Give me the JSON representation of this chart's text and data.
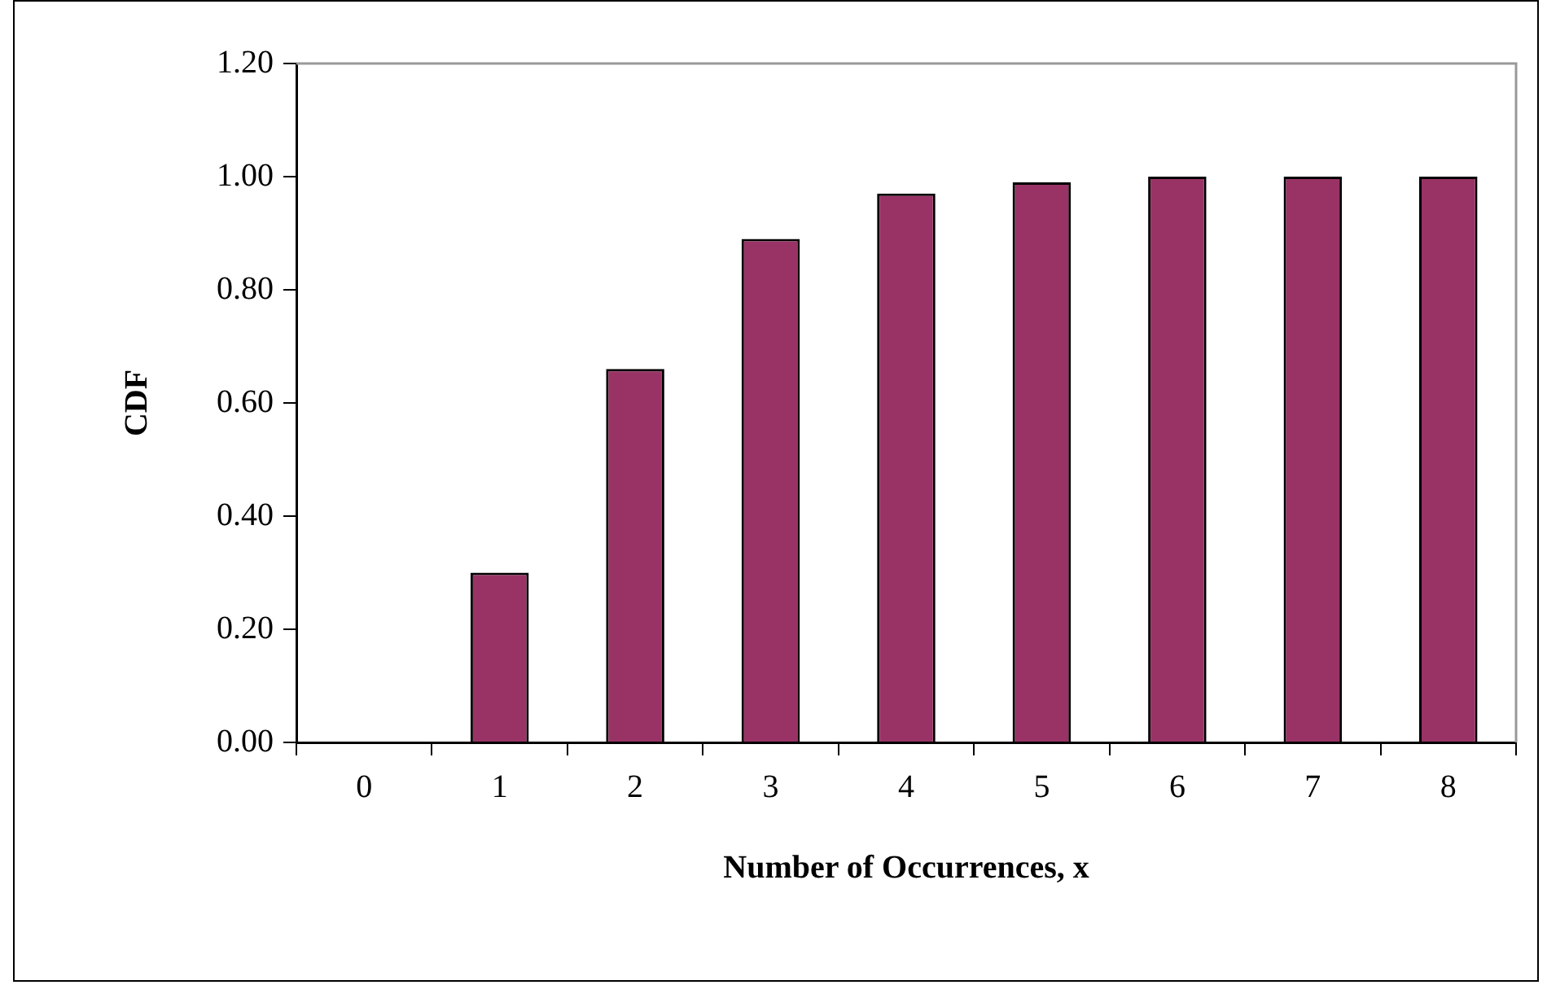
{
  "chart_data": {
    "type": "bar",
    "xlabel": "Number of Occurrences, x",
    "ylabel": "CDF",
    "categories": [
      "0",
      "1",
      "2",
      "3",
      "4",
      "5",
      "6",
      "7",
      "8"
    ],
    "values": [
      0,
      0.3,
      0.66,
      0.89,
      0.97,
      0.99,
      1.0,
      1.0,
      1.0
    ],
    "color": "#993366",
    "ylim": [
      0,
      1.2
    ],
    "yticks": [
      {
        "value": 0,
        "label": "0.00"
      },
      {
        "value": 0.2,
        "label": "0.20"
      },
      {
        "value": 0.4,
        "label": "0.40"
      },
      {
        "value": 0.6,
        "label": "0.60"
      },
      {
        "value": 0.8,
        "label": "0.80"
      },
      {
        "value": 1,
        "label": "1.00"
      },
      {
        "value": 1.2,
        "label": "1.20"
      }
    ],
    "grid": false,
    "legend": false
  }
}
